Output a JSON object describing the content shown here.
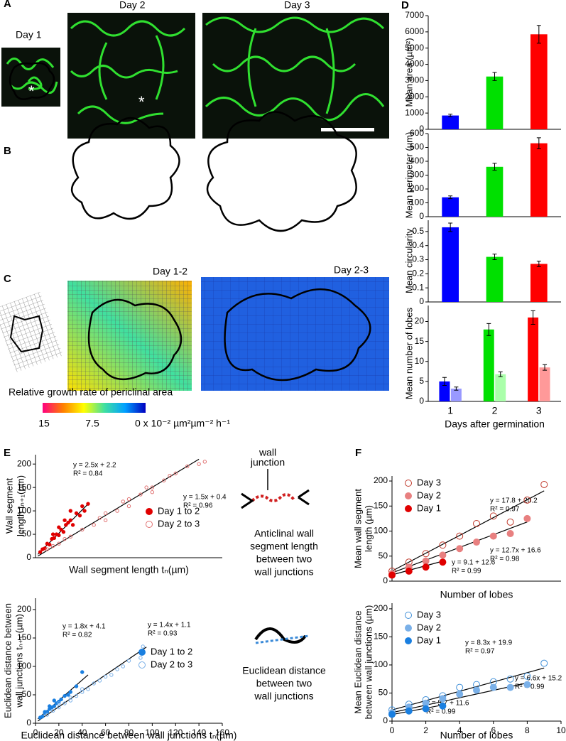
{
  "figure": {
    "panels": [
      "A",
      "B",
      "C",
      "D",
      "E",
      "F"
    ],
    "day_labels": [
      "Day 1",
      "Day 2",
      "Day 3"
    ],
    "asterisks": [
      "*",
      "*"
    ],
    "growth_labels": [
      "Day 1-2",
      "Day 2-3"
    ],
    "colorbar": {
      "title": "Relative growth rate of periclinal area",
      "labels": [
        "15",
        "7.5",
        "0 x 10⁻² µm²µm⁻² h⁻¹"
      ]
    },
    "diagram": {
      "junction": [
        "wall",
        "junction"
      ],
      "anticlinal": [
        "Anticlinal wall",
        "segment length",
        "between two",
        "wall junctions"
      ],
      "euclid": [
        "Euclidean distance",
        "between two",
        "wall junctions"
      ]
    }
  },
  "chart_data": [
    {
      "type": "bar",
      "ylabel": [
        "Mean area (µm²)"
      ],
      "ylim": [
        0,
        7000
      ],
      "yticks": [
        0,
        1000,
        2000,
        3000,
        4000,
        5000,
        6000,
        7000
      ],
      "series": [
        {
          "values": [
            850,
            3250,
            5850
          ],
          "errors": [
            80,
            250,
            550
          ],
          "colors": [
            "#0000ff",
            "#00e000",
            "#ff0000"
          ]
        }
      ]
    },
    {
      "type": "bar",
      "ylabel": [
        "Mean perimeter (µm)"
      ],
      "ylim": [
        0,
        600
      ],
      "yticks": [
        0,
        100,
        200,
        300,
        400,
        500,
        600
      ],
      "series": [
        {
          "values": [
            140,
            360,
            530
          ],
          "errors": [
            10,
            25,
            40
          ],
          "colors": [
            "#0000ff",
            "#00e000",
            "#ff0000"
          ]
        }
      ]
    },
    {
      "type": "bar",
      "ylabel": [
        "Mean circularity"
      ],
      "ylim": [
        0,
        0.58
      ],
      "yticks": [
        0,
        0.1,
        0.2,
        0.3,
        0.4,
        0.5
      ],
      "series": [
        {
          "values": [
            0.53,
            0.32,
            0.27
          ],
          "errors": [
            0.03,
            0.02,
            0.02
          ],
          "colors": [
            "#0000ff",
            "#00e000",
            "#ff0000"
          ]
        }
      ]
    },
    {
      "type": "bar",
      "ylabel": [
        "Mean number of lobes"
      ],
      "xlabel": "Days after germination",
      "categories": [
        "1",
        "2",
        "3"
      ],
      "ylim": [
        0,
        24
      ],
      "yticks": [
        0,
        5,
        10,
        15,
        20
      ],
      "series": [
        {
          "values": [
            5,
            18,
            21
          ],
          "errors": [
            1,
            1.5,
            1.7
          ],
          "colors": [
            "#0000ff",
            "#00e000",
            "#ff0000"
          ]
        },
        {
          "values": [
            3.2,
            6.8,
            8.5
          ],
          "errors": [
            0.4,
            0.6,
            0.7
          ],
          "colors": [
            "#9999ff",
            "#aaffaa",
            "#ff9999"
          ]
        }
      ]
    },
    {
      "type": "scatter",
      "ylabel": [
        "Wall segment",
        "length tₙ₊₁(µm)"
      ],
      "xlabel": "Wall segment length tₙ(µm)",
      "xlim": [
        0,
        160
      ],
      "ylim": [
        0,
        220
      ],
      "yticks": [
        0,
        50,
        100,
        150,
        200
      ],
      "series": [
        {
          "name": "Day 1 to 2",
          "color": "#e00000",
          "marker": "filled",
          "x": [
            4,
            6,
            8,
            10,
            12,
            14,
            16,
            18,
            20,
            22,
            24,
            26,
            28,
            30,
            32,
            35,
            38,
            40,
            42,
            45,
            15,
            20,
            25,
            30
          ],
          "values": [
            12,
            18,
            20,
            30,
            28,
            40,
            42,
            50,
            48,
            60,
            55,
            70,
            75,
            80,
            70,
            95,
            90,
            110,
            100,
            115,
            50,
            65,
            80,
            100
          ]
        },
        {
          "name": "Day 2 to 3",
          "color": "#e07070",
          "marker": "open",
          "x": [
            10,
            15,
            20,
            25,
            30,
            40,
            50,
            55,
            60,
            70,
            75,
            80,
            90,
            95,
            100,
            110,
            115,
            120,
            130,
            140,
            145,
            60,
            80,
            100
          ],
          "values": [
            18,
            25,
            30,
            40,
            45,
            60,
            70,
            85,
            95,
            100,
            120,
            125,
            135,
            150,
            150,
            165,
            175,
            180,
            195,
            200,
            205,
            80,
            110,
            140
          ]
        }
      ],
      "fits": [
        {
          "x": [
            2,
            45
          ],
          "values": [
            7.2,
            114.7
          ],
          "label": "y = 2.5x + 2.2",
          "r2": "R² = 0.84"
        },
        {
          "x": [
            2,
            140
          ],
          "values": [
            3.4,
            210.4
          ],
          "label": "y = 1.5x + 0.4",
          "r2": "R² = 0.96"
        }
      ]
    },
    {
      "type": "scatter",
      "ylabel": [
        "Euclidean distance between",
        "wall junctions tₙ₊₁ (µm)"
      ],
      "xlabel": "Euclidean distance between wall junctions tₙ(µm)",
      "xlim": [
        0,
        160
      ],
      "xticks": [
        0,
        20,
        40,
        60,
        80,
        100,
        120,
        140,
        160
      ],
      "ylim": [
        0,
        220
      ],
      "yticks": [
        0,
        50,
        100,
        150,
        200
      ],
      "series": [
        {
          "name": "Day 1 to 2",
          "color": "#1a7fe0",
          "marker": "filled",
          "x": [
            4,
            6,
            8,
            10,
            12,
            14,
            16,
            18,
            20,
            22,
            25,
            28,
            30,
            35,
            40,
            8,
            12,
            16
          ],
          "values": [
            10,
            12,
            18,
            20,
            25,
            28,
            30,
            35,
            38,
            42,
            48,
            50,
            55,
            65,
            90,
            20,
            30,
            40
          ]
        },
        {
          "name": "Day 2 to 3",
          "color": "#7ab0e8",
          "marker": "open",
          "x": [
            10,
            15,
            20,
            25,
            30,
            35,
            40,
            45,
            50,
            55,
            60,
            65,
            70,
            75,
            80,
            90,
            92,
            20,
            30,
            40
          ],
          "values": [
            15,
            22,
            28,
            35,
            40,
            48,
            55,
            60,
            70,
            75,
            82,
            85,
            95,
            100,
            110,
            115,
            135,
            35,
            45,
            60
          ]
        }
      ],
      "fits": [
        {
          "x": [
            2,
            45
          ],
          "values": [
            7.7,
            85.1
          ],
          "label": "y = 1.8x + 4.1",
          "r2": "R² = 0.82"
        },
        {
          "x": [
            2,
            95
          ],
          "values": [
            3.9,
            134.1
          ],
          "label": "y = 1.4x + 1.1",
          "r2": "R² = 0.93"
        }
      ]
    },
    {
      "type": "scatter",
      "ylabel": [
        "Mean wall segment",
        "length (µm)"
      ],
      "xlabel": "Number of lobes",
      "xlim": [
        0,
        10
      ],
      "ylim": [
        0,
        210
      ],
      "yticks": [
        0,
        50,
        100,
        150,
        200
      ],
      "series": [
        {
          "name": "Day 3",
          "color": "#c0392b",
          "marker": "open",
          "x": [
            0,
            1,
            2,
            3,
            4,
            5,
            6,
            7,
            8,
            9
          ],
          "values": [
            20,
            38,
            55,
            72,
            90,
            115,
            130,
            118,
            162,
            193
          ]
        },
        {
          "name": "Day 2",
          "color": "#e88080",
          "marker": "filled",
          "x": [
            0,
            1,
            2,
            3,
            4,
            5,
            6,
            7,
            8
          ],
          "values": [
            15,
            28,
            40,
            52,
            65,
            78,
            90,
            95,
            125
          ]
        },
        {
          "name": "Day 1",
          "color": "#e00000",
          "marker": "filled",
          "x": [
            0,
            1,
            2,
            3
          ],
          "values": [
            12,
            20,
            28,
            38
          ]
        }
      ],
      "fits": [
        {
          "x": [
            0,
            9
          ],
          "values": [
            20.2,
            180.4
          ],
          "label": "y = 17.8 + 20.2",
          "r2": "R² = 0.97"
        },
        {
          "x": [
            0,
            8
          ],
          "values": [
            16.6,
            118.2
          ],
          "label": "y = 12.7x + 16.6",
          "r2": "R² = 0.98"
        },
        {
          "x": [
            0,
            3
          ],
          "values": [
            12.6,
            39.9
          ],
          "label": "y = 9.1 + 12.6",
          "r2": "R² = 0.99"
        }
      ]
    },
    {
      "type": "scatter",
      "ylabel": [
        "Mean Euclidean distance",
        "between wall junctions (µm)"
      ],
      "xlabel": "Number of lobes",
      "xlim": [
        0,
        10
      ],
      "xticks": [
        0,
        2,
        4,
        6,
        8,
        10
      ],
      "ylim": [
        0,
        210
      ],
      "yticks": [
        0,
        50,
        100,
        150,
        200
      ],
      "series": [
        {
          "name": "Day 3",
          "color": "#3f8fd8",
          "marker": "open",
          "x": [
            0,
            1,
            2,
            3,
            4,
            5,
            6,
            7,
            8,
            9
          ],
          "values": [
            20,
            30,
            38,
            45,
            60,
            65,
            70,
            75,
            80,
            103
          ]
        },
        {
          "name": "Day 2",
          "color": "#7ab0e8",
          "marker": "filled",
          "x": [
            0,
            1,
            2,
            3,
            4,
            5,
            6,
            7,
            8
          ],
          "values": [
            15,
            25,
            32,
            40,
            48,
            55,
            60,
            60,
            65
          ]
        },
        {
          "name": "Day 1",
          "color": "#1a7fe0",
          "marker": "filled",
          "x": [
            0,
            1,
            2,
            3
          ],
          "values": [
            12,
            18,
            22,
            27
          ]
        }
      ],
      "fits": [
        {
          "x": [
            0,
            9
          ],
          "values": [
            19.9,
            94.6
          ],
          "label": "y = 8.3x + 19.9",
          "r2": "R² = 0.97"
        },
        {
          "x": [
            0,
            8
          ],
          "values": [
            15.2,
            68
          ],
          "label": "y = 6.6x + 15.2",
          "r2": "R² = 0.99"
        },
        {
          "x": [
            0,
            3
          ],
          "values": [
            11.6,
            28.7
          ],
          "label": "y = 5.7 + 11.6",
          "r2": "R² = 0.99"
        }
      ]
    }
  ]
}
